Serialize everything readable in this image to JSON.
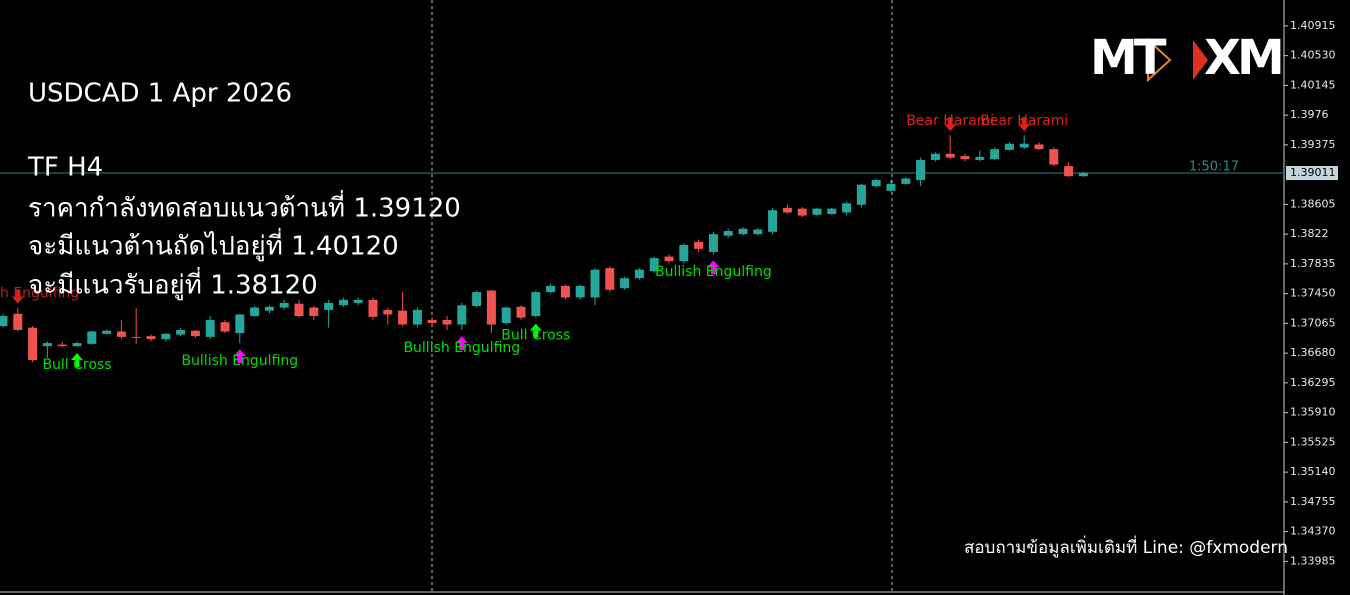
{
  "chart_data": {
    "type": "candlestick",
    "title": "USDCAD 1 Apr 2026",
    "subtitle": "TF H4",
    "annotations": [
      "ราคากำลังทดสอบแนวต้านที่ 1.39120",
      "จะมีแนวต้านถัดไปอยู่ที่ 1.40120",
      "จะมีแนวรับอยู่ที่ 1.38120"
    ],
    "footer": "สอบถามข้อมูลเพิ่มเติมที่ Line: @fxmodern",
    "logo": [
      "MT",
      "XM"
    ],
    "up_color": "#26a69a",
    "down_color": "#ef5350",
    "ylim": [
      1.3355,
      1.4125
    ],
    "yticks": [
      1.40915,
      {
        "value": 1.4053,
        "label": "1.40530"
      },
      1.40145,
      1.3976,
      1.39375,
      1.38605,
      1.3822,
      1.37835,
      {
        "value": 1.3745,
        "label": "1.37450"
      },
      1.37065,
      {
        "value": 1.3668,
        "label": "1.36680"
      },
      1.36295,
      {
        "value": 1.3591,
        "label": "1.35910"
      },
      1.35525,
      {
        "value": 1.3514,
        "label": "1.35140"
      },
      1.34755,
      {
        "value": 1.3437,
        "label": "1.34370"
      },
      1.33985
    ],
    "last_price": 1.39011,
    "countdown": "1:50:17",
    "open": [
      1.3703,
      1.3719,
      1.3701,
      1.3677,
      1.3679,
      1.3677,
      1.368,
      1.3693,
      1.3696,
      1.3689,
      1.369,
      1.3686,
      1.3692,
      1.3697,
      1.3689,
      1.3708,
      1.3694,
      1.3716,
      1.3723,
      1.3727,
      1.3732,
      1.3727,
      1.3724,
      1.373,
      1.3733,
      1.3737,
      1.3724,
      1.3723,
      1.3705,
      1.3711,
      1.3711,
      1.3705,
      1.3729,
      1.3749,
      1.3707,
      1.3728,
      1.3716,
      1.3747,
      1.3755,
      1.374,
      1.374,
      1.3778,
      1.3752,
      1.3765,
      1.3774,
      1.3793,
      1.3787,
      1.3812,
      1.3799,
      1.382,
      1.3822,
      1.3822,
      1.3825,
      1.3856,
      1.3855,
      1.3847,
      1.3848,
      1.385,
      1.386,
      1.3884,
      1.3878,
      1.3887,
      1.3892,
      1.3918,
      1.3926,
      1.3923,
      1.3918,
      1.3919,
      1.3931,
      1.3934,
      1.3938,
      1.3932,
      1.391,
      1.3897
    ],
    "high": [
      1.3719,
      1.3727,
      1.3703,
      1.3683,
      1.3683,
      1.3683,
      1.3697,
      1.3698,
      1.3711,
      1.3726,
      1.3692,
      1.3694,
      1.3701,
      1.3698,
      1.3716,
      1.3711,
      1.3719,
      1.3729,
      1.373,
      1.3737,
      1.3737,
      1.3729,
      1.3737,
      1.374,
      1.374,
      1.374,
      1.3727,
      1.3747,
      1.3727,
      1.3714,
      1.3716,
      1.3733,
      1.3749,
      1.375,
      1.3728,
      1.373,
      1.3749,
      1.3758,
      1.3757,
      1.3757,
      1.3778,
      1.378,
      1.3767,
      1.3778,
      1.3793,
      1.3796,
      1.381,
      1.3815,
      1.3825,
      1.3829,
      1.3831,
      1.383,
      1.3856,
      1.386,
      1.3857,
      1.3856,
      1.3856,
      1.3864,
      1.3887,
      1.3894,
      1.3892,
      1.3896,
      1.3921,
      1.3928,
      1.395,
      1.3926,
      1.393,
      1.3934,
      1.3941,
      1.395,
      1.3941,
      1.3934,
      1.3915,
      1.3903
    ],
    "low": [
      1.3701,
      1.3696,
      1.3656,
      1.3662,
      1.3676,
      1.3676,
      1.3679,
      1.3692,
      1.3686,
      1.368,
      1.3683,
      1.3683,
      1.369,
      1.3688,
      1.3686,
      1.3694,
      1.3681,
      1.3715,
      1.3719,
      1.3724,
      1.3714,
      1.3711,
      1.3701,
      1.3728,
      1.373,
      1.3711,
      1.3705,
      1.3703,
      1.3701,
      1.3705,
      1.3698,
      1.3698,
      1.3727,
      1.3694,
      1.3705,
      1.3711,
      1.3714,
      1.3745,
      1.3737,
      1.3737,
      1.373,
      1.3747,
      1.375,
      1.3763,
      1.3772,
      1.3784,
      1.3784,
      1.3799,
      1.3796,
      1.3817,
      1.382,
      1.382,
      1.3822,
      1.3848,
      1.3844,
      1.3846,
      1.3847,
      1.3846,
      1.3856,
      1.3882,
      1.3876,
      1.3886,
      1.3884,
      1.3916,
      1.3919,
      1.3916,
      1.3916,
      1.3918,
      1.393,
      1.3932,
      1.3931,
      1.391,
      1.3896,
      1.3896
    ],
    "close": [
      1.3716,
      1.3698,
      1.3659,
      1.3681,
      1.3677,
      1.3681,
      1.3696,
      1.3697,
      1.3689,
      1.3688,
      1.3686,
      1.3693,
      1.3698,
      1.369,
      1.3711,
      1.3696,
      1.3718,
      1.3727,
      1.3728,
      1.3733,
      1.3716,
      1.3716,
      1.3733,
      1.3737,
      1.3737,
      1.3715,
      1.3718,
      1.3705,
      1.3724,
      1.3707,
      1.3705,
      1.373,
      1.3747,
      1.3705,
      1.3727,
      1.3714,
      1.3747,
      1.3755,
      1.374,
      1.3755,
      1.3776,
      1.375,
      1.3765,
      1.3776,
      1.3791,
      1.3787,
      1.3808,
      1.3803,
      1.3822,
      1.3826,
      1.3829,
      1.3828,
      1.3853,
      1.385,
      1.3846,
      1.3855,
      1.3855,
      1.3862,
      1.3886,
      1.3892,
      1.3887,
      1.3894,
      1.3918,
      1.3926,
      1.3921,
      1.3919,
      1.3922,
      1.3932,
      1.3939,
      1.3939,
      1.3932,
      1.3912,
      1.3897,
      1.3901
    ],
    "signals": [
      {
        "label": "h Engulfing",
        "index": 1,
        "direction": "down",
        "color": "#b22222",
        "arrow_color": "#e0201a"
      },
      {
        "label": "Bull Cross",
        "index": 5,
        "direction": "up",
        "color": "#00e000",
        "arrow_color": "#00ff00"
      },
      {
        "label": "Bullish Engulfing",
        "index": 16,
        "direction": "up",
        "color": "#00e000",
        "arrow_color": "#ff00ff"
      },
      {
        "label": "Bullish Engulfing",
        "index": 31,
        "direction": "up",
        "color": "#00e000",
        "arrow_color": "#ff00ff"
      },
      {
        "label": "Bull Cross",
        "index": 36,
        "direction": "up",
        "color": "#00e000",
        "arrow_color": "#00ff00"
      },
      {
        "label": "Bullish Engulfing",
        "index": 48,
        "direction": "up",
        "color": "#00e000",
        "arrow_color": "#ff00ff"
      },
      {
        "label": "Bear Harami",
        "index": 64,
        "direction": "down",
        "color": "#e0201a",
        "arrow_color": "#e0201a"
      },
      {
        "label": "Bear Harami",
        "index": 69,
        "direction": "down",
        "color": "#e0201a",
        "arrow_color": "#e0201a"
      }
    ]
  }
}
